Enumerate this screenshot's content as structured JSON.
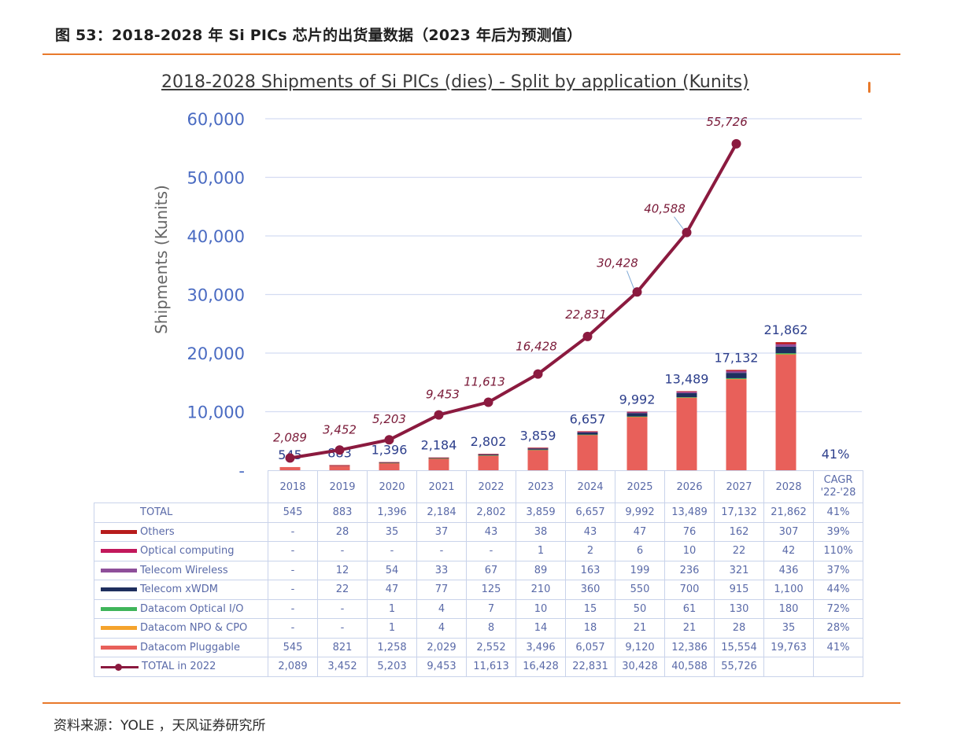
{
  "caption": "图 53：2018-2028 年 Si PICs 芯片的出货量数据（2023 年后为预测值）",
  "source": "资料来源：YOLE   ，天风证券研究所",
  "chart_data": {
    "type": "bar",
    "title": "2018-2028 Shipments of Si PICs (dies) - Split by application (Kunits)",
    "ylabel": "Shipments (Kunits)",
    "ylim": [
      0,
      60000
    ],
    "yticks": [
      0,
      10000,
      20000,
      30000,
      40000,
      50000,
      60000
    ],
    "ytick_labels": [
      "-",
      "10,000",
      "20,000",
      "30,000",
      "40,000",
      "50,000",
      "60,000"
    ],
    "categories": [
      "2018",
      "2019",
      "2020",
      "2021",
      "2022",
      "2023",
      "2024",
      "2025",
      "2026",
      "2027",
      "2028"
    ],
    "cagr_header": [
      "CAGR",
      "'22-'28"
    ],
    "stacked_series": [
      {
        "name": "Datacom Pluggable",
        "color": "#e8605a",
        "values": [
          545,
          821,
          1258,
          2029,
          2552,
          3496,
          6057,
          9120,
          12386,
          15554,
          19763
        ],
        "labels": [
          "545",
          "821",
          "1,258",
          "2,029",
          "2,552",
          "3,496",
          "6,057",
          "9,120",
          "12,386",
          "15,554",
          "19,763"
        ],
        "cagr": "41%"
      },
      {
        "name": "Datacom NPO & CPO",
        "color": "#f5a32c",
        "values": [
          0,
          0,
          1,
          4,
          8,
          14,
          18,
          21,
          21,
          28,
          35
        ],
        "labels": [
          "-",
          "-",
          "1",
          "4",
          "8",
          "14",
          "18",
          "21",
          "21",
          "28",
          "35"
        ],
        "cagr": "28%"
      },
      {
        "name": "Datacom Optical I/O",
        "color": "#3fb55a",
        "values": [
          0,
          0,
          1,
          4,
          7,
          10,
          15,
          50,
          61,
          130,
          180
        ],
        "labels": [
          "-",
          "-",
          "1",
          "4",
          "7",
          "10",
          "15",
          "50",
          "61",
          "130",
          "180"
        ],
        "cagr": "72%"
      },
      {
        "name": "Telecom xWDM",
        "color": "#1f2f5e",
        "values": [
          0,
          22,
          47,
          77,
          125,
          210,
          360,
          550,
          700,
          915,
          1100
        ],
        "labels": [
          "-",
          "22",
          "47",
          "77",
          "125",
          "210",
          "360",
          "550",
          "700",
          "915",
          "1,100"
        ],
        "cagr": "44%"
      },
      {
        "name": "Telecom Wireless",
        "color": "#8e4f9a",
        "values": [
          0,
          12,
          54,
          33,
          67,
          89,
          163,
          199,
          236,
          321,
          436
        ],
        "labels": [
          "-",
          "12",
          "54",
          "33",
          "67",
          "89",
          "163",
          "199",
          "236",
          "321",
          "436"
        ],
        "cagr": "37%"
      },
      {
        "name": "Optical computing",
        "color": "#c2185b",
        "values": [
          0,
          0,
          0,
          0,
          0,
          1,
          2,
          6,
          10,
          22,
          42
        ],
        "labels": [
          "-",
          "-",
          "-",
          "-",
          "-",
          "1",
          "2",
          "6",
          "10",
          "22",
          "42"
        ],
        "cagr": "110%"
      },
      {
        "name": "Others",
        "color": "#b71c1c",
        "values": [
          0,
          28,
          35,
          37,
          43,
          38,
          43,
          47,
          76,
          162,
          307
        ],
        "labels": [
          "-",
          "28",
          "35",
          "37",
          "43",
          "38",
          "43",
          "47",
          "76",
          "162",
          "307"
        ],
        "cagr": "39%"
      }
    ],
    "total": {
      "name": "TOTAL",
      "values": [
        545,
        883,
        1396,
        2184,
        2802,
        3859,
        6657,
        9992,
        13489,
        17132,
        21862
      ],
      "labels": [
        "545",
        "883",
        "1,396",
        "2,184",
        "2,802",
        "3,859",
        "6,657",
        "9,992",
        "13,489",
        "17,132",
        "21,862"
      ],
      "cagr": "41%"
    },
    "line": {
      "name": "TOTAL in 2022",
      "color": "#8b1a3f",
      "values": [
        2089,
        3452,
        5203,
        9453,
        11613,
        16428,
        22831,
        30428,
        40588,
        55726
      ],
      "labels": [
        "2,089",
        "3,452",
        "5,203",
        "9,453",
        "11,613",
        "16,428",
        "22,831",
        "30,428",
        "40,588",
        "55,726"
      ]
    },
    "table_order": [
      "TOTAL",
      "Others",
      "Optical computing",
      "Telecom Wireless",
      "Telecom xWDM",
      "Datacom Optical I/O",
      "Datacom NPO & CPO",
      "Datacom Pluggable",
      "TOTAL in 2022"
    ]
  }
}
